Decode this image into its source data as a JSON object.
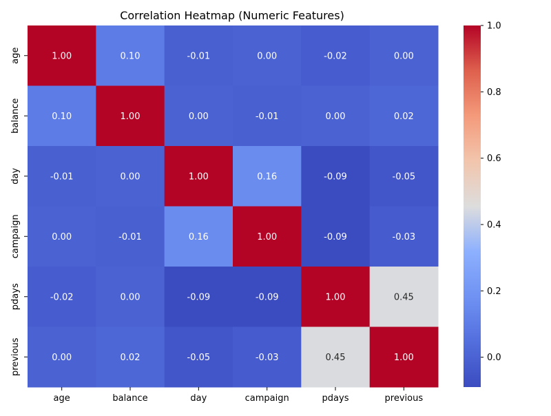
{
  "chart_data": {
    "type": "heatmap",
    "title": "Correlation Heatmap (Numeric Features)",
    "xlabel": "",
    "ylabel": "",
    "x_categories": [
      "age",
      "balance",
      "day",
      "campaign",
      "pdays",
      "previous"
    ],
    "y_categories": [
      "age",
      "balance",
      "day",
      "campaign",
      "pdays",
      "previous"
    ],
    "values": [
      [
        1.0,
        0.1,
        -0.01,
        0.0,
        -0.02,
        0.0
      ],
      [
        0.1,
        1.0,
        0.0,
        -0.01,
        0.0,
        0.02
      ],
      [
        -0.01,
        0.0,
        1.0,
        0.16,
        -0.09,
        -0.05
      ],
      [
        0.0,
        -0.01,
        0.16,
        1.0,
        -0.09,
        -0.03
      ],
      [
        -0.02,
        0.0,
        -0.09,
        -0.09,
        1.0,
        0.45
      ],
      [
        0.0,
        0.02,
        -0.05,
        -0.03,
        0.45,
        1.0
      ]
    ],
    "value_format": "0.00",
    "colormap": "coolwarm",
    "color_range": [
      -0.09,
      1.0
    ],
    "colorbar": {
      "ticks": [
        0.0,
        0.2,
        0.4,
        0.6,
        0.8,
        1.0
      ],
      "tick_labels": [
        "0.0",
        "0.2",
        "0.4",
        "0.6",
        "0.8",
        "1.0"
      ]
    },
    "grid": false,
    "legend": "none",
    "colors": {
      "cold": "#3b4cc0",
      "neutral": "#dddddd",
      "hot": "#b40426",
      "text_light": "#ffffff",
      "text_dark": "#262626",
      "axis": "#000000"
    }
  }
}
